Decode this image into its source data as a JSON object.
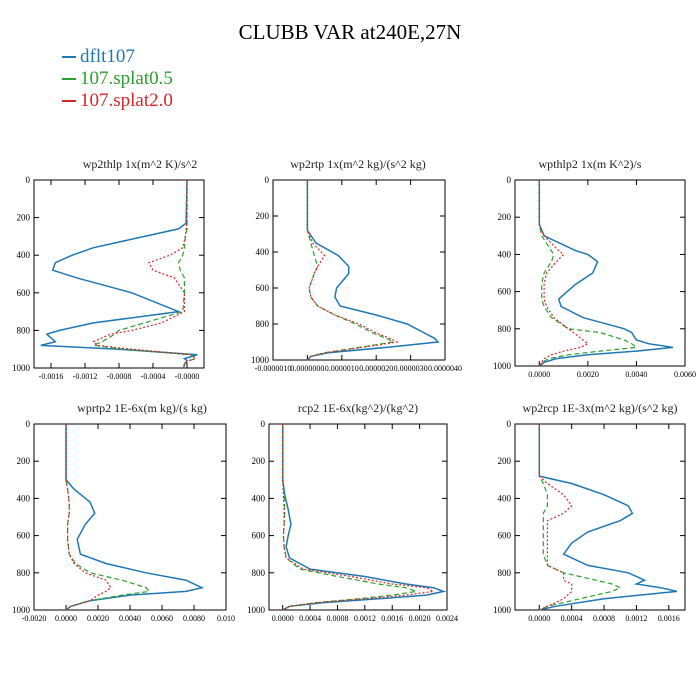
{
  "title": "CLUBB VAR at240E,27N",
  "legend": [
    {
      "label": "dflt107",
      "color": "#1f77b4"
    },
    {
      "label": "107.splat0.5",
      "color": "#2ca02c"
    },
    {
      "label": "107.splat2.0",
      "color": "#d62728"
    }
  ],
  "chart_data": [
    {
      "type": "line",
      "title": "wp2thlp   1x(m^2 K)/s^2",
      "xlim": [
        -0.0018,
        0.0002
      ],
      "xticks": [
        -0.0016,
        -0.0012,
        -0.0008,
        -0.0004,
        0.0
      ],
      "xtick_labels": [
        "-0.0016",
        "-0.0012",
        "-0.0008",
        "-0.0004",
        "-0.0000"
      ],
      "ylim": [
        0,
        1000
      ],
      "yticks": [
        0,
        200,
        400,
        600,
        800,
        1000
      ],
      "y": [
        0,
        230,
        260,
        300,
        360,
        400,
        440,
        480,
        520,
        600,
        700,
        760,
        800,
        820,
        860,
        880,
        900,
        930,
        950,
        960,
        980,
        1000
      ],
      "series": [
        {
          "name": "dflt107",
          "color": "#1f77b4",
          "values": [
            0,
            -1e-05,
            -0.0001,
            -0.0005,
            -0.0011,
            -0.00135,
            -0.00155,
            -0.00158,
            -0.0013,
            -0.00065,
            -0.0001,
            -0.0011,
            -0.0015,
            -0.00165,
            -0.00155,
            -0.00172,
            -0.0008,
            0.00012,
            -3e-05,
            0,
            -3e-05,
            -4e-05
          ]
        },
        {
          "name": "107.splat0.5",
          "color": "#2ca02c",
          "values": [
            0,
            0,
            0,
            -2e-05,
            -3e-05,
            -5e-05,
            -0.0001,
            -8e-05,
            -3e-05,
            -3e-05,
            -5e-05,
            -0.0005,
            -0.0008,
            -0.00085,
            -0.001,
            -0.0011,
            -0.00075,
            5e-05,
            0.0001,
            3e-05,
            -3e-05,
            -4e-05
          ]
        },
        {
          "name": "107.splat2.0",
          "color": "#d62728",
          "values": [
            0,
            0,
            -1e-05,
            -2e-05,
            -5e-05,
            -0.0002,
            -0.00045,
            -0.0004,
            -0.00015,
            -3e-05,
            -3e-05,
            -0.0003,
            -0.00065,
            -0.0009,
            -0.0011,
            -0.00105,
            -0.00065,
            5e-05,
            0.0001,
            2e-05,
            -3e-05,
            -4e-05
          ]
        }
      ]
    },
    {
      "type": "line",
      "title": "wp2rtp   1x(m^2 kg)/(s^2 kg)",
      "xlim": [
        -1e-06,
        4e-06
      ],
      "xticks": [
        -1e-06,
        0.0,
        1e-06,
        2e-06,
        3e-06,
        4e-06
      ],
      "xtick_labels": [
        "-0.0000010",
        "0.0000000",
        "0.0000010",
        "0.0000020",
        "0.0000030",
        "0.0000040"
      ],
      "ylim": [
        0,
        1000
      ],
      "yticks": [
        0,
        200,
        400,
        600,
        800,
        1000
      ],
      "y": [
        0,
        280,
        350,
        420,
        480,
        520,
        600,
        650,
        700,
        750,
        800,
        850,
        880,
        900,
        930,
        960,
        980,
        1000
      ],
      "series": [
        {
          "name": "dflt107",
          "color": "#1f77b4",
          "values": [
            0,
            0,
            2.5e-07,
            9e-07,
            1.2e-06,
            1.2e-06,
            8.5e-07,
            8e-07,
            9.5e-07,
            2e-06,
            2.9e-06,
            3.4e-06,
            3.7e-06,
            3.8e-06,
            2.3e-06,
            6e-07,
            1e-07,
            0
          ]
        },
        {
          "name": "107.splat0.5",
          "color": "#2ca02c",
          "values": [
            0,
            0,
            1e-07,
            2e-07,
            3e-07,
            2e-07,
            5e-08,
            1e-07,
            3e-07,
            8e-07,
            1.4e-06,
            1.9e-06,
            2.3e-06,
            2.5e-06,
            1.5e-06,
            5e-07,
            1e-07,
            0
          ]
        },
        {
          "name": "107.splat2.0",
          "color": "#d62728",
          "values": [
            0,
            0,
            1.5e-07,
            5e-07,
            3e-07,
            2e-07,
            5e-08,
            1e-07,
            3e-07,
            8e-07,
            1.5e-06,
            2e-06,
            2.4e-06,
            2.6e-06,
            1.6e-06,
            5e-07,
            1e-07,
            0
          ]
        }
      ]
    },
    {
      "type": "line",
      "title": "wpthlp2   1x(m K^2)/s",
      "xlim": [
        -0.001,
        0.006
      ],
      "xticks": [
        0.0,
        0.002,
        0.004,
        0.006
      ],
      "xtick_labels": [
        "0.0000",
        "0.0020",
        "0.0040",
        "0.0060"
      ],
      "ylim": [
        0,
        1000
      ],
      "yticks": [
        0,
        200,
        400,
        600,
        800,
        1000
      ],
      "y": [
        0,
        240,
        300,
        380,
        400,
        440,
        500,
        560,
        640,
        680,
        740,
        800,
        820,
        860,
        880,
        900,
        920,
        940,
        960,
        980,
        1000
      ],
      "series": [
        {
          "name": "dflt107",
          "color": "#1f77b4",
          "values": [
            0,
            0,
            0.0002,
            0.0015,
            0.002,
            0.0024,
            0.0022,
            0.0015,
            0.0008,
            0.0009,
            0.0018,
            0.0035,
            0.0038,
            0.004,
            0.0045,
            0.0055,
            0.004,
            0.002,
            0.0007,
            0.0002,
            0
          ]
        },
        {
          "name": "107.splat0.5",
          "color": "#2ca02c",
          "values": [
            0,
            0,
            0.0001,
            0.0005,
            0.0006,
            0.0005,
            0.0002,
            0.0001,
            0.0001,
            0.0002,
            0.0005,
            0.0012,
            0.0025,
            0.0035,
            0.0038,
            0.004,
            0.0025,
            0.0012,
            0.0004,
            0.0001,
            0
          ]
        },
        {
          "name": "107.splat2.0",
          "color": "#d62728",
          "values": [
            0,
            0,
            0.0002,
            0.0008,
            0.001,
            0.0007,
            0.0003,
            0.0002,
            0.0002,
            0.0003,
            0.0006,
            0.0012,
            0.0014,
            0.0018,
            0.002,
            0.0017,
            0.001,
            0.0005,
            0.0002,
            0.0001,
            0
          ]
        }
      ]
    },
    {
      "type": "line",
      "title": "wprtp2   1E-6x(m kg)/(s kg)",
      "xlim": [
        -0.002,
        0.01
      ],
      "xticks": [
        -0.002,
        0.0,
        0.002,
        0.004,
        0.006,
        0.008,
        0.01
      ],
      "xtick_labels": [
        "-0.0020",
        "0.0000",
        "0.0020",
        "0.0040",
        "0.0060",
        "0.0080",
        "0.010"
      ],
      "ylim": [
        0,
        1000
      ],
      "yticks": [
        0,
        200,
        400,
        600,
        800,
        1000
      ],
      "y": [
        0,
        300,
        350,
        420,
        480,
        540,
        620,
        700,
        750,
        800,
        840,
        880,
        900,
        920,
        950,
        980,
        1000
      ],
      "series": [
        {
          "name": "dflt107",
          "color": "#1f77b4",
          "values": [
            0,
            0,
            0.0005,
            0.0015,
            0.0018,
            0.0012,
            0.0007,
            0.0009,
            0.0025,
            0.005,
            0.0075,
            0.0085,
            0.0075,
            0.004,
            0.0015,
            0.0003,
            0
          ]
        },
        {
          "name": "107.splat0.5",
          "color": "#2ca02c",
          "values": [
            0,
            0,
            0.0001,
            0.0002,
            0.0002,
            0.0001,
            0.0001,
            0.0002,
            0.0006,
            0.0015,
            0.0035,
            0.005,
            0.0052,
            0.0035,
            0.0015,
            0.0003,
            0
          ]
        },
        {
          "name": "107.splat2.0",
          "color": "#d62728",
          "values": [
            0,
            0,
            0.0001,
            0.0002,
            0.0002,
            0.0001,
            0.0001,
            0.0002,
            0.0005,
            0.0012,
            0.0025,
            0.0028,
            0.0025,
            0.002,
            0.0015,
            0.0003,
            0
          ]
        }
      ]
    },
    {
      "type": "line",
      "title": "rcp2   1E-6x(kg^2)/(kg^2)",
      "xlim": [
        -0.0002,
        0.0024
      ],
      "xticks": [
        0.0,
        0.0004,
        0.0008,
        0.0012,
        0.0016,
        0.002,
        0.0024
      ],
      "xtick_labels": [
        "0.0000",
        "0.0004",
        "0.0008",
        "0.0012",
        "0.0016",
        "0.0020",
        "0.0024"
      ],
      "ylim": [
        0,
        1000
      ],
      "yticks": [
        0,
        200,
        400,
        600,
        800,
        1000
      ],
      "y": [
        0,
        300,
        380,
        460,
        540,
        600,
        660,
        720,
        780,
        820,
        860,
        880,
        900,
        920,
        940,
        960,
        980,
        1000
      ],
      "series": [
        {
          "name": "dflt107",
          "color": "#1f77b4",
          "values": [
            0,
            0,
            3e-05,
            8e-05,
            0.00012,
            8e-05,
            5e-05,
            0.0001,
            0.0004,
            0.0012,
            0.0018,
            0.0022,
            0.00235,
            0.0021,
            0.0014,
            0.0006,
            0.0001,
            0
          ]
        },
        {
          "name": "107.splat0.5",
          "color": "#2ca02c",
          "values": [
            0,
            0,
            2e-05,
            3e-05,
            2e-05,
            1e-05,
            2e-05,
            5e-05,
            0.00025,
            0.0008,
            0.0014,
            0.0018,
            0.00195,
            0.0016,
            0.0011,
            0.0005,
            0.0001,
            0
          ]
        },
        {
          "name": "107.splat2.0",
          "color": "#d62728",
          "values": [
            0,
            0,
            1e-05,
            2e-05,
            2e-05,
            1e-05,
            2e-05,
            5e-05,
            0.0003,
            0.001,
            0.0016,
            0.0021,
            0.0022,
            0.0018,
            0.0012,
            0.0005,
            0.0001,
            0
          ]
        }
      ]
    },
    {
      "type": "line",
      "title": "wp2rcp   1E-3x(m^2 kg)/(s^2 kg)",
      "xlim": [
        -0.0003,
        0.0018
      ],
      "xticks": [
        0.0,
        0.0004,
        0.0008,
        0.0012,
        0.0016
      ],
      "xtick_labels": [
        "0.0000",
        "0.0004",
        "0.0008",
        "0.0012",
        "0.0016"
      ],
      "ylim": [
        0,
        1000
      ],
      "yticks": [
        0,
        200,
        400,
        600,
        800,
        1000
      ],
      "y": [
        0,
        280,
        320,
        380,
        440,
        480,
        520,
        580,
        640,
        700,
        760,
        800,
        840,
        860,
        880,
        900,
        940,
        980,
        1000
      ],
      "series": [
        {
          "name": "dflt107",
          "color": "#1f77b4",
          "values": [
            0,
            0,
            0.0004,
            0.0008,
            0.0011,
            0.00115,
            0.001,
            0.0006,
            0.0004,
            0.0003,
            0.0006,
            0.0011,
            0.0013,
            0.0012,
            0.0015,
            0.0017,
            0.0008,
            0.0002,
            0
          ]
        },
        {
          "name": "107.splat0.5",
          "color": "#2ca02c",
          "values": [
            0,
            0,
            5e-05,
            0.0001,
            0.0001,
            5e-05,
            5e-05,
            5e-05,
            5e-05,
            5e-05,
            0.0001,
            0.0003,
            0.0007,
            0.0009,
            0.001,
            0.0009,
            0.0005,
            0.0001,
            0
          ]
        },
        {
          "name": "107.splat2.0",
          "color": "#d62728",
          "values": [
            0,
            0,
            0.0001,
            0.0003,
            0.0004,
            0.0003,
            0.0001,
            0.0001,
            0.0001,
            0.0001,
            0.0001,
            0.0003,
            0.0003,
            0.0004,
            0.0004,
            0.0004,
            0.0003,
            0.0001,
            0
          ]
        }
      ]
    }
  ]
}
